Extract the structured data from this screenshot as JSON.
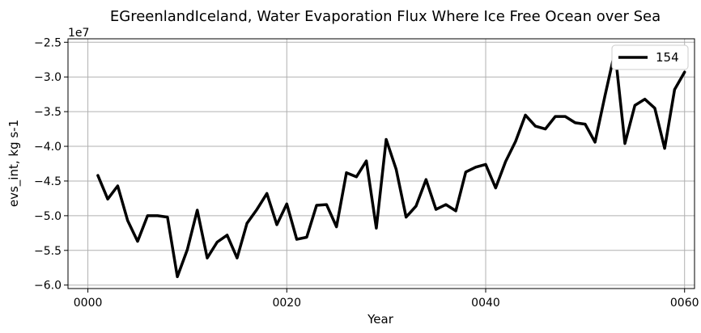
{
  "chart_data": {
    "type": "line",
    "title": "EGreenlandIceland, Water Evaporation Flux Where Ice Free Ocean over Sea",
    "xlabel": "Year",
    "ylabel": "evs_int, kg s-1",
    "y_offset_label": "1e7",
    "y_scale": 10000000,
    "xlim": [
      -2,
      61
    ],
    "ylim": [
      -6.05,
      -2.45
    ],
    "grid": true,
    "legend_position": "top-right",
    "x_ticks": [
      {
        "value": 0,
        "label": "0000"
      },
      {
        "value": 20,
        "label": "0020"
      },
      {
        "value": 40,
        "label": "0040"
      },
      {
        "value": 60,
        "label": "0060"
      }
    ],
    "y_ticks": [
      {
        "value": -2.5,
        "label": "−2.5"
      },
      {
        "value": -3.0,
        "label": "−3.0"
      },
      {
        "value": -3.5,
        "label": "−3.5"
      },
      {
        "value": -4.0,
        "label": "−4.0"
      },
      {
        "value": -4.5,
        "label": "−4.5"
      },
      {
        "value": -5.0,
        "label": "−5.0"
      },
      {
        "value": -5.5,
        "label": "−5.5"
      },
      {
        "value": -6.0,
        "label": "−6.0"
      }
    ],
    "series": [
      {
        "name": "154",
        "color": "#000000",
        "x": [
          1,
          2,
          3,
          4,
          5,
          6,
          7,
          8,
          9,
          10,
          11,
          12,
          13,
          14,
          15,
          16,
          17,
          18,
          19,
          20,
          21,
          22,
          23,
          24,
          25,
          26,
          27,
          28,
          29,
          30,
          31,
          32,
          33,
          34,
          35,
          36,
          37,
          38,
          39,
          40,
          41,
          42,
          43,
          44,
          45,
          46,
          47,
          48,
          49,
          50,
          51,
          52,
          53,
          54,
          55,
          56,
          57,
          58,
          59,
          60
        ],
        "values": [
          -4.42,
          -4.76,
          -4.57,
          -5.07,
          -5.37,
          -5.0,
          -5.0,
          -5.02,
          -5.88,
          -5.49,
          -4.92,
          -5.61,
          -5.38,
          -5.28,
          -5.61,
          -5.11,
          -4.91,
          -4.68,
          -5.13,
          -4.83,
          -5.34,
          -5.31,
          -4.85,
          -4.84,
          -5.16,
          -4.38,
          -4.44,
          -4.21,
          -5.18,
          -3.9,
          -4.33,
          -5.02,
          -4.86,
          -4.48,
          -4.91,
          -4.84,
          -4.93,
          -4.37,
          -4.3,
          -4.26,
          -4.6,
          -4.22,
          -3.93,
          -3.55,
          -3.71,
          -3.75,
          -3.57,
          -3.57,
          -3.66,
          -3.68,
          -3.94,
          -3.27,
          -2.63,
          -3.96,
          -3.41,
          -3.32,
          -3.45,
          -4.03,
          -3.18,
          -2.93
        ]
      }
    ]
  }
}
